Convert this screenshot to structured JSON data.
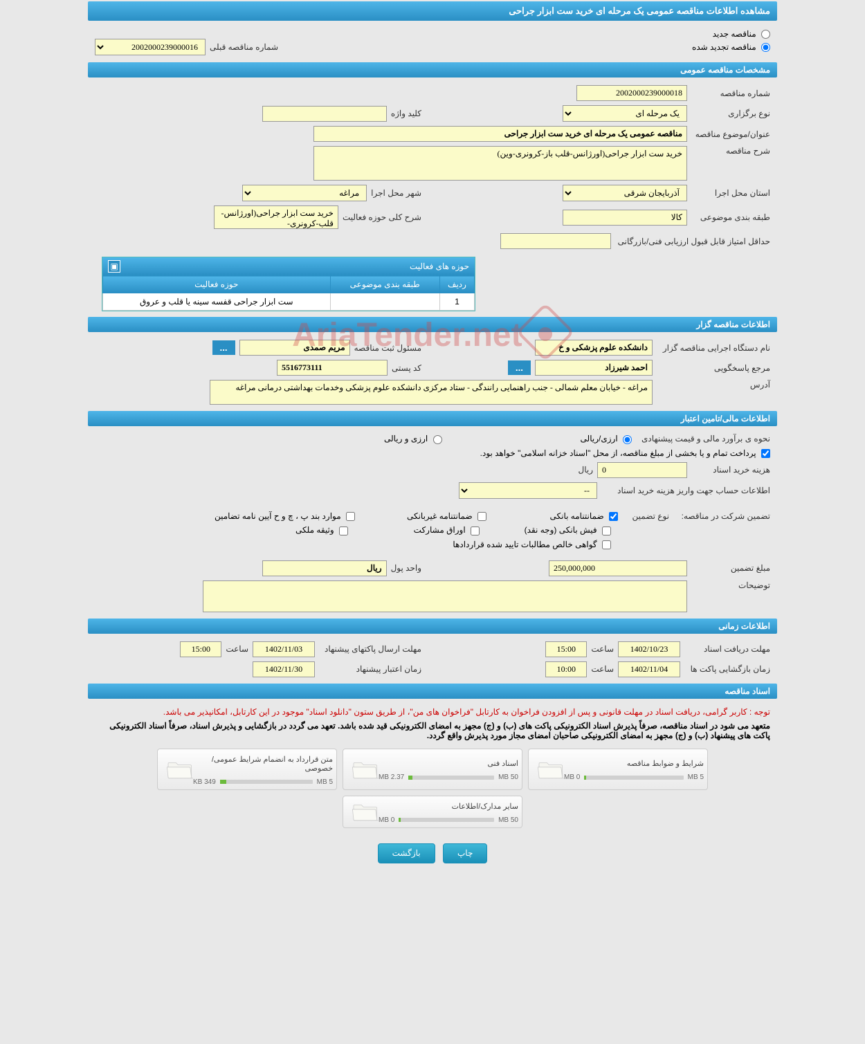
{
  "page_title": "مشاهده اطلاعات مناقصه عمومی یک مرحله ای خرید ست ابزار جراحی",
  "tender_type": {
    "new_label": "مناقصه جدید",
    "renewed_label": "مناقصه تجدید شده",
    "selected": "renewed"
  },
  "prev_tender": {
    "label": "شماره مناقصه قبلی",
    "value": "2002000239000016"
  },
  "sections": {
    "general": "مشخصات مناقصه عمومی",
    "organizer": "اطلاعات مناقصه گزار",
    "financial": "اطلاعات مالی/تامین اعتبار",
    "timing": "اطلاعات زمانی",
    "docs": "اسناد مناقصه"
  },
  "general": {
    "number_label": "شماره مناقصه",
    "number": "2002000239000018",
    "type_label": "نوع برگزاری",
    "type": "یک مرحله ای",
    "keyword_label": "کلید واژه",
    "keyword": "",
    "title_label": "عنوان/موضوع مناقصه",
    "title": "مناقصه عمومی یک مرحله ای خرید ست ابزار جراحی",
    "desc_label": "شرح مناقصه",
    "desc": "خرید ست ابزار جراحی(اورژانس-قلب باز-کرونری-وین)",
    "province_label": "استان محل اجرا",
    "province": "آذربایجان شرقی",
    "city_label": "شهر محل اجرا",
    "city": "مراغه",
    "category_label": "طبقه بندی موضوعی",
    "category": "کالا",
    "activity_desc_label": "شرح کلی حوزه فعالیت",
    "activity_desc": "خرید ست ابزار جراحی(اورژانس-قلب-کرونری-",
    "min_score_label": "حداقل امتیاز قابل قبول ارزیابی فنی/بازرگانی",
    "min_score": ""
  },
  "activity": {
    "header": "حوزه های فعالیت",
    "col_row": "ردیف",
    "col_category": "طبقه بندی موضوعی",
    "col_field": "حوزه فعالیت",
    "rows": [
      {
        "n": "1",
        "category": "",
        "field": "ست ابزار جراحی قفسه سینه یا قلب و عروق"
      }
    ]
  },
  "organizer": {
    "org_label": "نام دستگاه اجرایی مناقصه گزار",
    "org": "دانشکده علوم پزشکی و خ",
    "registrar_label": "مسئول ثبت مناقصه",
    "registrar": "مریم صمدی",
    "contact_label": "مرجع پاسخگویی",
    "contact": "احمد شیرزاد",
    "postal_label": "کد پستی",
    "postal": "5516773111",
    "address_label": "آدرس",
    "address": "مراغه - خیابان معلم شمالی - جنب راهنمایی رانندگی - ستاد مرکزی دانشکده علوم پزشکی وخدمات بهداشتی درمانی مراغه"
  },
  "financial": {
    "estimate_label": "نحوه ی برآورد مالی و قیمت پیشنهادی",
    "opt_rial": "ارزی/ریالی",
    "opt_currency": "ارزی و ریالی",
    "source_note": "پرداخت تمام و یا بخشی از مبلغ مناقصه، از محل \"اسناد خزانه اسلامی\" خواهد بود.",
    "doc_cost_label": "هزینه خرید اسناد",
    "doc_cost": "0",
    "rial_label": "ریال",
    "deposit_account_label": "اطلاعات حساب جهت واریز هزینه خرید اسناد",
    "deposit_account": "--",
    "guarantee_section_label": "تضمین شرکت در مناقصه:",
    "guarantee_type_label": "نوع تضمین",
    "g_bank": "ضمانتنامه بانکی",
    "g_nonbank": "ضمانتنامه غیربانکی",
    "g_clauses": "موارد بند پ ، چ و ح آیین نامه تضامین",
    "g_cash": "فیش بانکی (وجه نقد)",
    "g_securities": "اوراق مشارکت",
    "g_property": "وثیقه ملکی",
    "g_receivables": "گواهی خالص مطالبات تایید شده قراردادها",
    "guarantee_amount_label": "مبلغ تضمین",
    "guarantee_amount": "250,000,000",
    "currency_unit_label": "واحد پول",
    "currency_unit": "ریال",
    "notes_label": "توضیحات",
    "notes": ""
  },
  "timing": {
    "receive_label": "مهلت دریافت اسناد",
    "receive_date": "1402/10/23",
    "receive_time": "15:00",
    "submit_label": "مهلت ارسال پاکتهای پیشنهاد",
    "submit_date": "1402/11/03",
    "submit_time": "15:00",
    "open_label": "زمان بازگشایی پاکت ها",
    "open_date": "1402/11/04",
    "open_time": "10:00",
    "validity_label": "زمان اعتبار پیشنهاد",
    "validity_date": "1402/11/30",
    "time_label": "ساعت"
  },
  "docs": {
    "note1": "توجه : کاربر گرامی، دریافت اسناد در مهلت قانونی و پس از افزودن فراخوان به کارتابل \"فراخوان های من\"، از طریق ستون \"دانلود اسناد\" موجود در این کارتابل، امکانپذیر می باشد.",
    "note2": "متعهد می شود در اسناد مناقصه، صرفاً پذیرش اسناد الکترونیکی پاکت های (ب) و (ج) مجهز به امضای الکترونیکی قید شده باشد. تعهد می گردد در بازگشایی و پذیرش اسناد، صرفاً اسناد الکترونیکی پاکت های پیشنهاد (ب) و (ج) مجهز به امضای الکترونیکی صاحبان امضای مجاز مورد پذیرش واقع گردد.",
    "boxes": [
      {
        "title": "شرایط و ضوابط مناقصه",
        "max": "5 MB",
        "used": "0 MB",
        "pct": 2
      },
      {
        "title": "اسناد فنی",
        "max": "50 MB",
        "used": "2.37 MB",
        "pct": 5
      },
      {
        "title": "متن قرارداد به انضمام شرایط عمومی/خصوصی",
        "max": "5 MB",
        "used": "349 KB",
        "pct": 7
      },
      {
        "title": "سایر مدارک/اطلاعات",
        "max": "50 MB",
        "used": "0 MB",
        "pct": 2
      }
    ]
  },
  "buttons": {
    "print": "چاپ",
    "back": "بازگشت",
    "dots": "..."
  }
}
